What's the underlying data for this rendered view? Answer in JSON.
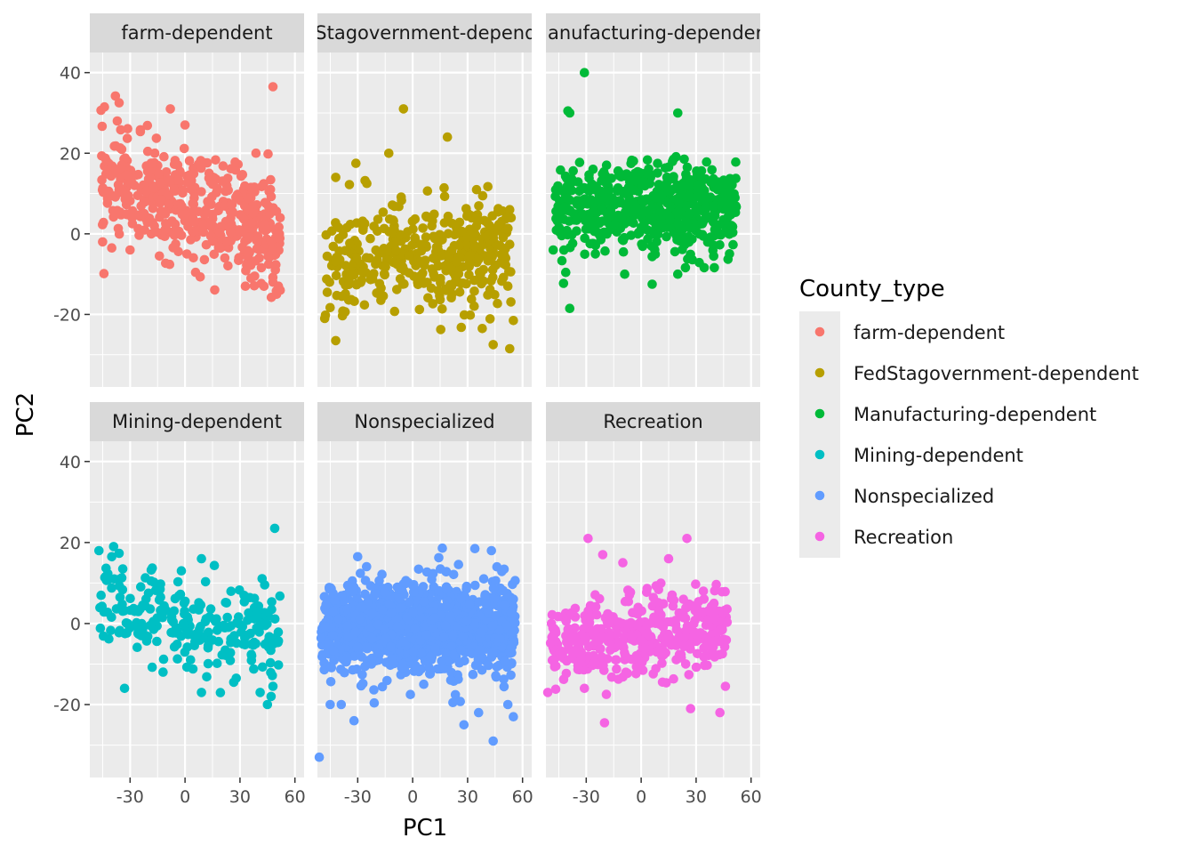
{
  "chart_data": {
    "type": "scatter",
    "xlabel": "PC1",
    "ylabel": "PC2",
    "xlim": [
      -52,
      65
    ],
    "ylim": [
      -38,
      45
    ],
    "x_ticks": [
      -30,
      0,
      30,
      60
    ],
    "x_tick_labels": [
      "-30",
      "0",
      "30",
      "60"
    ],
    "y_ticks": [
      -20,
      0,
      20,
      40
    ],
    "y_tick_labels": [
      "-20",
      "0",
      "20",
      "40"
    ],
    "grid": true,
    "facet_layout": [
      2,
      3
    ],
    "legend": {
      "title": "County_type",
      "position": "right",
      "entries": [
        {
          "label": "farm-dependent",
          "color": "#F8766D"
        },
        {
          "label": "FedStagovernment-dependent",
          "color": "#B79F00"
        },
        {
          "label": "Manufacturing-dependent",
          "color": "#00BA38"
        },
        {
          "label": "Mining-dependent",
          "color": "#00BFC4"
        },
        {
          "label": "Nonspecialized",
          "color": "#619CFF"
        },
        {
          "label": "Recreation",
          "color": "#F564E3"
        }
      ]
    },
    "panels": [
      {
        "strip": "farm-dependent",
        "color": "#F8766D",
        "n_points": 480,
        "cloud": {
          "x_range": [
            -46,
            52
          ],
          "y_center": 7,
          "y_slope": -0.13,
          "y_spread": 6.5
        },
        "outliers": [
          [
            -38,
            34.2
          ],
          [
            -36,
            32.5
          ],
          [
            -37,
            28
          ],
          [
            -44,
            31.5
          ],
          [
            -8,
            31
          ],
          [
            0,
            27
          ],
          [
            48,
            36.5
          ],
          [
            -45,
            -2
          ],
          [
            -40,
            -3.5
          ],
          [
            -30,
            -4
          ],
          [
            -14,
            -5.5
          ],
          [
            1,
            -5
          ],
          [
            48,
            -12
          ],
          [
            50,
            -15
          ],
          [
            51,
            -13
          ],
          [
            36,
            -11
          ],
          [
            38,
            -10.5
          ],
          [
            52,
            -14
          ]
        ]
      },
      {
        "strip": "FedStagovernment-dependent",
        "color": "#B79F00",
        "n_points": 420,
        "cloud": {
          "x_range": [
            -48,
            54
          ],
          "y_center": -6,
          "y_slope": 0.05,
          "y_spread": 6.5
        },
        "outliers": [
          [
            -5,
            31
          ],
          [
            19,
            24
          ],
          [
            -31,
            17.5
          ],
          [
            -13,
            20
          ],
          [
            -42,
            14
          ],
          [
            -25,
            12.5
          ],
          [
            -42,
            -26.5
          ],
          [
            -48,
            -21
          ],
          [
            44,
            -27.5
          ],
          [
            53,
            -28.5
          ],
          [
            55,
            -21.5
          ],
          [
            38,
            -23.5
          ],
          [
            53,
            6
          ]
        ]
      },
      {
        "strip": "Manufacturing-dependent",
        "color": "#00BA38",
        "n_points": 560,
        "cloud": {
          "x_range": [
            -47,
            52
          ],
          "y_center": 6,
          "y_slope": 0.0,
          "y_spread": 5.5
        },
        "outliers": [
          [
            -31,
            40
          ],
          [
            -40,
            30.5
          ],
          [
            -39,
            30
          ],
          [
            20,
            30
          ],
          [
            -39,
            -18.5
          ],
          [
            -9,
            -10
          ],
          [
            6,
            -12.5
          ],
          [
            20,
            -10
          ],
          [
            -48,
            -4
          ]
        ]
      },
      {
        "strip": "Mining-dependent",
        "color": "#00BFC4",
        "n_points": 240,
        "cloud": {
          "x_range": [
            -47,
            52
          ],
          "y_center": 1,
          "y_slope": -0.1,
          "y_spread": 5.5
        },
        "outliers": [
          [
            49,
            23.5
          ],
          [
            -47,
            18
          ],
          [
            -39,
            19
          ],
          [
            -40,
            16.5
          ],
          [
            -34,
            13.5
          ],
          [
            -2,
            13
          ],
          [
            9,
            16
          ],
          [
            9,
            -17
          ],
          [
            -33,
            -16
          ],
          [
            -12,
            -12
          ],
          [
            45,
            -20
          ],
          [
            47,
            -18
          ],
          [
            41,
            -17
          ],
          [
            48,
            -15.5
          ]
        ]
      },
      {
        "strip": "Nonspecialized",
        "color": "#619CFF",
        "n_points": 1200,
        "cloud": {
          "x_range": [
            -50,
            56
          ],
          "y_center": -1,
          "y_slope": 0.0,
          "y_spread": 5.5
        },
        "outliers": [
          [
            -51,
            -33
          ],
          [
            -32,
            -24
          ],
          [
            28,
            -25
          ],
          [
            44,
            -29
          ],
          [
            36,
            -22
          ],
          [
            -45,
            -20
          ],
          [
            22,
            -19.5
          ],
          [
            -39,
            -20
          ],
          [
            -30,
            16.5
          ],
          [
            34,
            18.5
          ],
          [
            43,
            18
          ],
          [
            46,
            14
          ],
          [
            55,
            -23
          ],
          [
            52,
            -20
          ]
        ]
      },
      {
        "strip": "Recreation",
        "color": "#F564E3",
        "n_points": 420,
        "cloud": {
          "x_range": [
            -50,
            47
          ],
          "y_center": -3,
          "y_slope": 0.05,
          "y_spread": 5.0
        },
        "outliers": [
          [
            -29,
            21
          ],
          [
            25,
            21
          ],
          [
            -21,
            17
          ],
          [
            -10,
            15
          ],
          [
            15,
            16
          ],
          [
            -19,
            -17.5
          ],
          [
            -20,
            -24.5
          ],
          [
            27,
            -21
          ],
          [
            43,
            -22
          ],
          [
            46,
            -15.5
          ],
          [
            -51,
            -17
          ],
          [
            -31,
            -16
          ]
        ]
      }
    ]
  }
}
